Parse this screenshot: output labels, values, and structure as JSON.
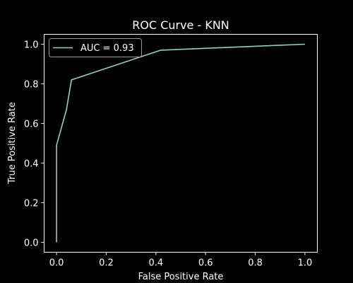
{
  "chart_data": {
    "type": "line",
    "title": "ROC Curve - KNN",
    "xlabel": "False Positive Rate",
    "ylabel": "True Positive Rate",
    "xlim": [
      -0.05,
      1.05
    ],
    "ylim": [
      -0.05,
      1.05
    ],
    "x_ticks": [
      0.0,
      0.2,
      0.4,
      0.6,
      0.8,
      1.0
    ],
    "y_ticks": [
      0.0,
      0.2,
      0.4,
      0.6,
      0.8,
      1.0
    ],
    "x_tick_labels": [
      "0.0",
      "0.2",
      "0.4",
      "0.6",
      "0.8",
      "1.0"
    ],
    "y_tick_labels": [
      "0.0",
      "0.2",
      "0.4",
      "0.6",
      "0.8",
      "1.0"
    ],
    "grid": false,
    "legend_position": "upper-left",
    "background_color": "#000000",
    "foreground_color": "#ffffff",
    "series": [
      {
        "name": "AUC = 0.93",
        "color": "#8dd3c7",
        "x": [
          0.0,
          0.0,
          0.0,
          0.04,
          0.06,
          0.42,
          1.0
        ],
        "y": [
          0.0,
          0.02,
          0.49,
          0.67,
          0.82,
          0.97,
          1.0
        ]
      }
    ]
  }
}
